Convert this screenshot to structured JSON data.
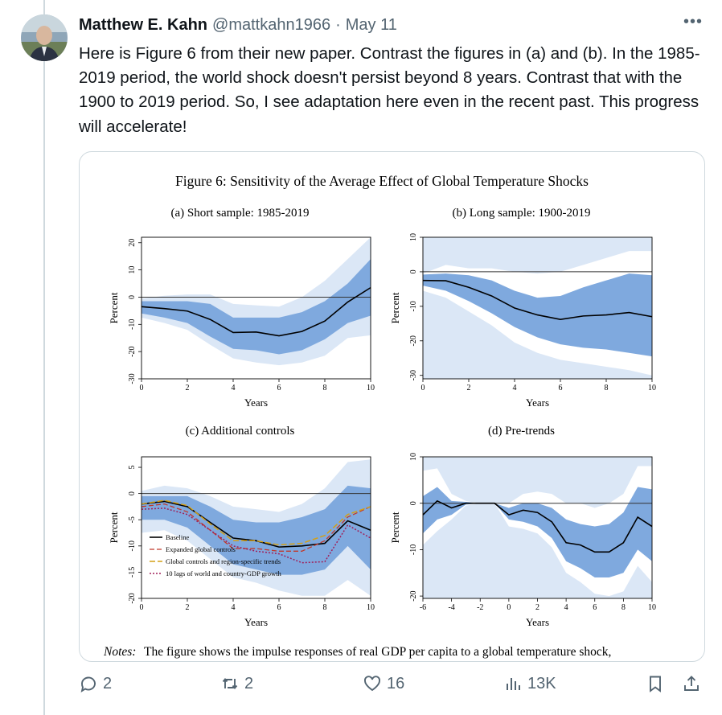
{
  "tweet": {
    "author_name": "Matthew E. Kahn",
    "handle": "@mattkahn1966",
    "separator": "·",
    "date": "May 11",
    "more_label": "•••",
    "text": "Here is Figure 6 from their new paper.  Contrast the figures in (a) and (b).  In the 1985-2019 period, the world shock doesn't persist beyond 8 years. Contrast that with the 1900 to 2019 period.  So, I see adaptation here even in the recent past.  This progress will accelerate!"
  },
  "actions": {
    "reply_count": "2",
    "repost_count": "2",
    "like_count": "16",
    "views_count": "13K"
  },
  "figure": {
    "title": "Figure 6: Sensitivity of the Average Effect of Global Temperature Shocks",
    "notes_label": "Notes:",
    "notes_text": "The figure shows the impulse responses of real GDP per capita to a global temperature shock,"
  },
  "colors": {
    "band_inner": "#7fa9de",
    "band_outer": "#dbe7f6",
    "line": "#000000",
    "expanded": "#c0392b",
    "regional": "#d4a017",
    "lags": "#a0205a"
  },
  "chart_data": [
    {
      "type": "line",
      "title": "(a) Short sample: 1985-2019",
      "xlabel": "Years",
      "ylabel": "Percent",
      "xlim": [
        0,
        10
      ],
      "ylim": [
        -30,
        22
      ],
      "xticks": [
        0,
        2,
        4,
        6,
        8,
        10
      ],
      "yticks": [
        -30,
        -20,
        -10,
        0,
        10,
        20
      ],
      "x": [
        0,
        1,
        2,
        3,
        4,
        5,
        6,
        7,
        8,
        9,
        10
      ],
      "series": [
        {
          "values": [
            -3.5,
            -4.2,
            -5.1,
            -8.2,
            -13,
            -12.8,
            -14.2,
            -12.6,
            -8.8,
            -1.8,
            3.5
          ]
        }
      ],
      "bands": [
        {
          "kind": "outer",
          "lower": [
            -7.5,
            -9.5,
            -12,
            -17.5,
            -22.5,
            -24,
            -25,
            -24,
            -21.5,
            -15,
            -14
          ],
          "upper": [
            -0.5,
            0.5,
            1,
            1,
            -2.5,
            -3,
            -3.5,
            0,
            6,
            14,
            22
          ]
        },
        {
          "kind": "inner",
          "lower": [
            -6,
            -7.5,
            -9.5,
            -14.5,
            -19,
            -19.5,
            -21,
            -19.5,
            -15.5,
            -9.5,
            -6.8
          ],
          "upper": [
            -1.5,
            -1.5,
            -1.5,
            -2.5,
            -7.5,
            -7.5,
            -7.5,
            -5.5,
            -1.5,
            5,
            14
          ]
        }
      ]
    },
    {
      "type": "line",
      "title": "(b) Long sample: 1900-2019",
      "xlabel": "Years",
      "ylabel": "Percent",
      "xlim": [
        0,
        10
      ],
      "ylim": [
        -31,
        10
      ],
      "xticks": [
        0,
        2,
        4,
        6,
        8,
        10
      ],
      "yticks": [
        -30,
        -20,
        -10,
        0,
        10
      ],
      "x": [
        0,
        1,
        2,
        3,
        4,
        5,
        6,
        7,
        8,
        9,
        10
      ],
      "series": [
        {
          "values": [
            -2.5,
            -2.6,
            -4.5,
            -7,
            -10.5,
            -12.5,
            -13.8,
            -12.8,
            -12.5,
            -11.8,
            -13
          ]
        }
      ],
      "bands": [
        {
          "kind": "outer",
          "lower": [
            -5.5,
            -7.5,
            -11.5,
            -15.5,
            -20.5,
            -23.5,
            -25.5,
            -26.5,
            -27.5,
            -28.5,
            -30
          ]
        },
        {
          "kind": "outer",
          "upper": [
            -0.5,
            2,
            1,
            1,
            0,
            -0.5,
            0,
            2,
            4,
            6,
            6
          ]
        },
        {
          "kind": "inner",
          "lower": [
            -4,
            -5.5,
            -8.5,
            -12,
            -16,
            -19,
            -21,
            -22,
            -22.5,
            -23.5,
            -24.5
          ],
          "upper": [
            -0.8,
            -0.5,
            -1,
            -2.5,
            -5.5,
            -7.5,
            -7,
            -4.5,
            -2.5,
            -0.5,
            -1
          ]
        }
      ]
    },
    {
      "type": "line",
      "title": "(c) Additional controls",
      "xlabel": "Years",
      "ylabel": "Percent",
      "xlim": [
        0,
        10
      ],
      "ylim": [
        -20,
        7
      ],
      "xticks": [
        0,
        2,
        4,
        6,
        8,
        10
      ],
      "yticks": [
        -20,
        -15,
        -10,
        -5,
        0,
        5
      ],
      "x": [
        0,
        1,
        2,
        3,
        4,
        5,
        6,
        7,
        8,
        9,
        10
      ],
      "series": [
        {
          "name": "Baseline",
          "values": [
            -2,
            -1.5,
            -2.5,
            -5.5,
            -8.5,
            -9,
            -10.2,
            -10,
            -9.5,
            -5.2,
            -7
          ]
        },
        {
          "name": "Expanded global controls",
          "values": [
            -2.5,
            -2,
            -3.5,
            -7,
            -10.5,
            -10.5,
            -11,
            -11,
            -9,
            -4.5,
            -2.5
          ]
        },
        {
          "name": "Global controls and region-specific trends",
          "values": [
            -2,
            -1.3,
            -2.3,
            -5.8,
            -9,
            -9,
            -9.8,
            -9.5,
            -8,
            -4,
            -2.5
          ]
        },
        {
          "name": "10 lags of world and country-GDP growth",
          "values": [
            -3,
            -2.8,
            -4,
            -7,
            -10,
            -11,
            -11.5,
            -13.2,
            -13,
            -6,
            -8.5
          ]
        }
      ],
      "bands": [
        {
          "kind": "outer",
          "lower": [
            -7.5,
            -7,
            -9,
            -12.5,
            -16,
            -17,
            -18.5,
            -19.5,
            -19.5,
            -16.5,
            -19.5
          ],
          "upper": [
            0.5,
            1.5,
            1,
            -0.5,
            -2.5,
            -3,
            -3.5,
            -2,
            1,
            6,
            6.5
          ]
        },
        {
          "kind": "inner",
          "lower": [
            -5,
            -5,
            -6.5,
            -10,
            -13.5,
            -14.5,
            -15.5,
            -15.5,
            -14.5,
            -10,
            -14.5
          ],
          "upper": [
            -0.5,
            -0.5,
            -0.5,
            -2.5,
            -5,
            -5.5,
            -5.5,
            -4.5,
            -3,
            1.5,
            1
          ]
        }
      ]
    },
    {
      "type": "line",
      "title": "(d) Pre-trends",
      "xlabel": "Years",
      "ylabel": "Percent",
      "xlim": [
        -6,
        10
      ],
      "ylim": [
        -20.5,
        10
      ],
      "xticks": [
        -6,
        -4,
        -2,
        0,
        2,
        4,
        6,
        8,
        10
      ],
      "yticks": [
        -20,
        -10,
        0,
        10
      ],
      "x": [
        -6,
        -5,
        -4,
        -3,
        -2,
        -1,
        0,
        1,
        2,
        3,
        4,
        5,
        6,
        7,
        8,
        9,
        10
      ],
      "series": [
        {
          "values": [
            -2.5,
            0.5,
            -1,
            0,
            0,
            0,
            -2.5,
            -1.5,
            -2,
            -4,
            -8.5,
            -9,
            -10.5,
            -10.5,
            -8.5,
            -3,
            -5
          ]
        }
      ],
      "bands": [
        {
          "kind": "outer",
          "lower": [
            -9,
            -6,
            -3.5,
            -0.5,
            0,
            0,
            -5,
            -5.5,
            -6.5,
            -9.5,
            -15,
            -17,
            -19.5,
            -20,
            -19,
            -13.5,
            -17
          ]
        },
        {
          "kind": "outer",
          "upper": [
            7,
            7.5,
            2,
            0.5,
            0,
            0,
            0,
            2,
            2.5,
            2,
            0,
            0,
            -1,
            0,
            2,
            8,
            8
          ]
        },
        {
          "kind": "inner",
          "lower": [
            -6.5,
            -3.5,
            -2.5,
            -0.3,
            0,
            0,
            -3.5,
            -4,
            -5,
            -7.5,
            -12.5,
            -14,
            -16,
            -16,
            -15,
            -10,
            -12.5
          ],
          "upper": [
            1.5,
            3.5,
            0.5,
            0.3,
            0,
            0,
            -1,
            0,
            0,
            -1,
            -3.5,
            -4.5,
            -5,
            -4.5,
            -2,
            3.5,
            3
          ]
        }
      ]
    }
  ]
}
